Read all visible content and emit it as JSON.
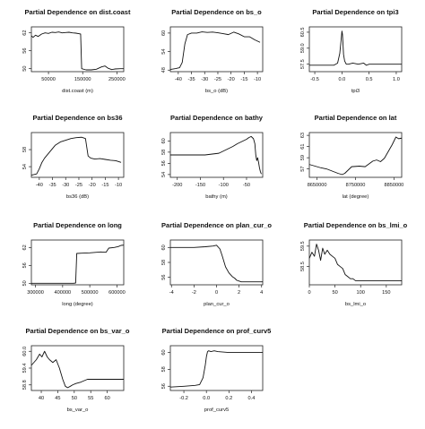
{
  "chart_data": [
    {
      "type": "line",
      "title": "Partial Dependence on dist.coast",
      "xlabel": "dist.coast (m)",
      "ylabel": "",
      "xlim": [
        0,
        270000
      ],
      "ylim": [
        49,
        64
      ],
      "xticks": [
        50000,
        150000,
        250000
      ],
      "xtick_labels": [
        "50000",
        "150000",
        "250000"
      ],
      "yticks": [
        50,
        56,
        62
      ],
      "ytick_labels": [
        "50",
        "56",
        "62"
      ],
      "series": [
        {
          "x": [
            0,
            5000,
            12000,
            20000,
            30000,
            40000,
            50000,
            60000,
            70000,
            80000,
            90000,
            100000,
            110000,
            120000,
            130000,
            140000,
            144000,
            147000,
            160000,
            175000,
            190000,
            205000,
            215000,
            225000,
            235000,
            245000,
            260000,
            270000
          ],
          "y": [
            61.0,
            60.5,
            61.2,
            60.8,
            61.6,
            62.0,
            61.8,
            62.2,
            62.1,
            62.3,
            62.0,
            62.1,
            62.2,
            62.0,
            61.9,
            61.7,
            61.6,
            50.0,
            49.6,
            49.6,
            49.8,
            50.6,
            50.9,
            50.1,
            49.7,
            49.9,
            50.0,
            50.0
          ]
        }
      ]
    },
    {
      "type": "line",
      "title": "Partial Dependence on bs_o",
      "xlabel": "bs_o (dB)",
      "ylabel": "",
      "xlim": [
        -43,
        -8
      ],
      "ylim": [
        47.5,
        62
      ],
      "xticks": [
        -40,
        -35,
        -30,
        -25,
        -20,
        -15,
        -10
      ],
      "xtick_labels": [
        "-40",
        "-35",
        "-30",
        "-25",
        "-20",
        "-15",
        "-10"
      ],
      "yticks": [
        48,
        54,
        60
      ],
      "ytick_labels": [
        "48",
        "54",
        "60"
      ],
      "series": [
        {
          "x": [
            -43,
            -41,
            -39.5,
            -38.5,
            -37.5,
            -36.5,
            -35,
            -33,
            -31,
            -29,
            -27,
            -25,
            -23,
            -21,
            -19,
            -17,
            -15,
            -13,
            -11,
            -9
          ],
          "y": [
            48.2,
            48.5,
            48.8,
            50.5,
            56.5,
            59.5,
            60.0,
            60.0,
            60.4,
            60.2,
            60.3,
            60.1,
            59.8,
            59.5,
            60.3,
            59.7,
            58.8,
            58.8,
            57.8,
            57.0
          ]
        }
      ]
    },
    {
      "type": "line",
      "title": "Partial Dependence on tpi3",
      "xlabel": "tpi3",
      "ylabel": "",
      "xlim": [
        -0.6,
        1.1
      ],
      "ylim": [
        56.8,
        61
      ],
      "xticks": [
        -0.5,
        0,
        0.5,
        1
      ],
      "xtick_labels": [
        "-0.5",
        "0.0",
        "0.5",
        "1.0"
      ],
      "yticks": [
        57.5,
        59,
        60.5
      ],
      "ytick_labels": [
        "57.5",
        "59.0",
        "60.5"
      ],
      "series": [
        {
          "x": [
            -0.6,
            -0.3,
            -0.15,
            -0.08,
            -0.04,
            -0.02,
            0.0,
            0.01,
            0.03,
            0.05,
            0.08,
            0.12,
            0.2,
            0.3,
            0.4,
            0.45,
            0.5,
            1.1
          ],
          "y": [
            57.4,
            57.4,
            57.4,
            57.6,
            58.5,
            59.5,
            60.6,
            60.3,
            58.4,
            57.8,
            57.5,
            57.5,
            57.6,
            57.5,
            57.6,
            57.4,
            57.5,
            57.5
          ]
        }
      ]
    },
    {
      "type": "line",
      "title": "Partial Dependence on bs36",
      "xlabel": "bs36 (dB)",
      "ylabel": "",
      "xlim": [
        -43,
        -8
      ],
      "ylim": [
        51.5,
        62
      ],
      "xticks": [
        -40,
        -35,
        -30,
        -25,
        -20,
        -15,
        -10
      ],
      "xtick_labels": [
        "-40",
        "-35",
        "-30",
        "-25",
        "-20",
        "-15",
        "-10"
      ],
      "yticks": [
        54,
        58
      ],
      "ytick_labels": [
        "54",
        "58"
      ],
      "series": [
        {
          "x": [
            -43,
            -41,
            -40,
            -39,
            -38,
            -36,
            -34,
            -32,
            -30,
            -28,
            -26,
            -24,
            -22.5,
            -21.5,
            -20.5,
            -19,
            -17,
            -15,
            -13,
            -11,
            -9
          ],
          "y": [
            52.0,
            52.3,
            53.5,
            55.0,
            56.0,
            57.5,
            59.0,
            59.8,
            60.2,
            60.6,
            60.8,
            60.9,
            60.6,
            56.5,
            56.0,
            55.8,
            55.9,
            55.7,
            55.5,
            55.4,
            55.0
          ]
        }
      ]
    },
    {
      "type": "line",
      "title": "Partial Dependence on bathy",
      "xlabel": "bathy (m)",
      "ylabel": "",
      "xlim": [
        -215,
        -15
      ],
      "ylim": [
        53.5,
        61.5
      ],
      "xticks": [
        -200,
        -150,
        -100,
        -50
      ],
      "xtick_labels": [
        "-200",
        "-150",
        "-100",
        "-50"
      ],
      "yticks": [
        54,
        56,
        58,
        60
      ],
      "ytick_labels": [
        "54",
        "56",
        "58",
        "60"
      ],
      "series": [
        {
          "x": [
            -215,
            -200,
            -180,
            -160,
            -140,
            -130,
            -120,
            -110,
            -100,
            -90,
            -80,
            -70,
            -60,
            -50,
            -45,
            -40,
            -35,
            -32,
            -30,
            -28,
            -26,
            -24,
            -22,
            -20,
            -18
          ],
          "y": [
            57.5,
            57.5,
            57.5,
            57.5,
            57.5,
            57.6,
            57.7,
            57.8,
            58.2,
            58.6,
            59.0,
            59.5,
            59.9,
            60.3,
            60.6,
            60.8,
            60.4,
            59.5,
            57.5,
            56.5,
            57.0,
            56.2,
            55.2,
            54.5,
            54.1
          ]
        }
      ]
    },
    {
      "type": "line",
      "title": "Partial Dependence on lat",
      "xlabel": "lat (degree)",
      "ylabel": "",
      "xlim": [
        8630000,
        8870000
      ],
      "ylim": [
        55.5,
        63.5
      ],
      "xticks": [
        8650000,
        8750000,
        8850000
      ],
      "xtick_labels": [
        "8650000",
        "8750000",
        "8850000"
      ],
      "yticks": [
        57,
        59,
        61,
        63
      ],
      "ytick_labels": [
        "57",
        "59",
        "61",
        "63"
      ],
      "series": [
        {
          "x": [
            8630000,
            8645000,
            8660000,
            8675000,
            8690000,
            8705000,
            8715000,
            8722000,
            8740000,
            8760000,
            8775000,
            8785000,
            8795000,
            8805000,
            8815000,
            8825000,
            8835000,
            8845000,
            8855000,
            8862000,
            8870000
          ],
          "y": [
            57.8,
            57.5,
            57.2,
            57.0,
            56.6,
            56.2,
            56.0,
            56.2,
            57.4,
            57.5,
            57.4,
            57.9,
            58.4,
            58.6,
            58.3,
            58.9,
            60.1,
            61.3,
            62.7,
            62.4,
            62.5
          ]
        }
      ]
    },
    {
      "type": "line",
      "title": "Partial Dependence on long",
      "xlabel": "long (degree)",
      "ylabel": "",
      "xlim": [
        285000,
        625000
      ],
      "ylim": [
        49.5,
        64.5
      ],
      "xticks": [
        300000,
        400000,
        500000,
        600000
      ],
      "xtick_labels": [
        "300000",
        "400000",
        "500000",
        "600000"
      ],
      "yticks": [
        50,
        56,
        62
      ],
      "ytick_labels": [
        "50",
        "56",
        "62"
      ],
      "series": [
        {
          "x": [
            285000,
            320000,
            360000,
            400000,
            440000,
            448000,
            452000,
            470000,
            500000,
            540000,
            560000,
            570000,
            590000,
            605000,
            615000,
            625000
          ],
          "y": [
            50.0,
            50.0,
            50.0,
            50.0,
            50.0,
            50.1,
            60.0,
            60.1,
            60.2,
            60.5,
            60.4,
            61.8,
            62.0,
            62.3,
            62.7,
            62.8
          ]
        }
      ]
    },
    {
      "type": "line",
      "title": "Partial Dependence on plan_cur_o",
      "xlabel": "plan_cur_o",
      "ylabel": "",
      "xlim": [
        -4.1,
        4.1
      ],
      "ylim": [
        55,
        61
      ],
      "xticks": [
        -4,
        -2,
        0,
        2,
        4
      ],
      "xtick_labels": [
        "-4",
        "-2",
        "0",
        "2",
        "4"
      ],
      "yticks": [
        56,
        58,
        60
      ],
      "ytick_labels": [
        "56",
        "58",
        "60"
      ],
      "series": [
        {
          "x": [
            -4.1,
            -3,
            -2,
            -1,
            -0.3,
            0,
            0.3,
            0.5,
            0.8,
            1.1,
            1.4,
            1.6,
            1.8,
            2.0,
            2.2,
            2.5,
            3,
            4.1
          ],
          "y": [
            60.0,
            60.0,
            60.0,
            60.1,
            60.2,
            60.3,
            59.8,
            58.9,
            57.4,
            56.6,
            56.1,
            55.9,
            55.6,
            55.5,
            55.4,
            55.4,
            55.4,
            55.4
          ]
        }
      ]
    },
    {
      "type": "line",
      "title": "Partial Dependence on bs_lmi_o",
      "xlabel": "bs_lmi_o",
      "ylabel": "",
      "xlim": [
        0,
        180
      ],
      "ylim": [
        57.6,
        59.8
      ],
      "xticks": [
        0,
        50,
        100,
        150
      ],
      "xtick_labels": [
        "0",
        "50",
        "100",
        "150"
      ],
      "yticks": [
        58.5,
        59.5
      ],
      "ytick_labels": [
        "58.5",
        "59.5"
      ],
      "series": [
        {
          "x": [
            0,
            5,
            10,
            14,
            18,
            22,
            26,
            30,
            35,
            40,
            45,
            50,
            55,
            60,
            65,
            70,
            75,
            80,
            85,
            90,
            95,
            100,
            110,
            120,
            140,
            160,
            180
          ],
          "y": [
            58.9,
            59.2,
            59.0,
            59.6,
            59.3,
            58.8,
            59.4,
            59.1,
            59.3,
            59.1,
            59.0,
            58.9,
            58.6,
            58.5,
            58.4,
            58.1,
            58.0,
            57.9,
            57.9,
            57.8,
            57.8,
            57.8,
            57.8,
            57.8,
            57.8,
            57.8,
            57.8
          ]
        }
      ]
    },
    {
      "type": "line",
      "title": "Partial Dependence on bs_var_o",
      "xlabel": "bs_var_o",
      "ylabel": "",
      "xlim": [
        37,
        65
      ],
      "ylim": [
        58.6,
        60.2
      ],
      "xticks": [
        40,
        45,
        50,
        55,
        60
      ],
      "xtick_labels": [
        "40",
        "45",
        "50",
        "55",
        "60"
      ],
      "yticks": [
        58.8,
        59.4,
        60.0
      ],
      "ytick_labels": [
        "58.8",
        "59.4",
        "60.0"
      ],
      "series": [
        {
          "x": [
            37,
            38.5,
            39.5,
            40.2,
            41,
            41.8,
            42.5,
            43.5,
            44.5,
            45.5,
            46.5,
            47.3,
            48,
            48.8,
            49.5,
            50.5,
            52,
            54,
            56,
            58,
            65
          ],
          "y": [
            59.5,
            59.7,
            59.9,
            59.8,
            60.0,
            59.8,
            59.7,
            59.6,
            59.7,
            59.4,
            59.0,
            58.75,
            58.7,
            58.75,
            58.8,
            58.85,
            58.9,
            59.0,
            59.0,
            59.0,
            59.0
          ]
        }
      ]
    },
    {
      "type": "line",
      "title": "Partial Dependence on prof_curv5",
      "xlabel": "prof_curv5",
      "ylabel": "",
      "xlim": [
        -0.32,
        0.5
      ],
      "ylim": [
        55.5,
        60.8
      ],
      "xticks": [
        -0.2,
        0,
        0.2,
        0.4
      ],
      "xtick_labels": [
        "-0.2",
        "0.0",
        "0.2",
        "0.4"
      ],
      "yticks": [
        56,
        58,
        60
      ],
      "ytick_labels": [
        "56",
        "58",
        "60"
      ],
      "series": [
        {
          "x": [
            -0.32,
            -0.2,
            -0.1,
            -0.06,
            -0.03,
            -0.01,
            0.0,
            0.01,
            0.02,
            0.04,
            0.07,
            0.1,
            0.2,
            0.3,
            0.5
          ],
          "y": [
            55.9,
            56.0,
            56.1,
            56.2,
            57.0,
            58.5,
            59.5,
            60.1,
            60.2,
            60.1,
            60.2,
            60.1,
            60.0,
            60.0,
            60.0
          ]
        }
      ]
    }
  ]
}
